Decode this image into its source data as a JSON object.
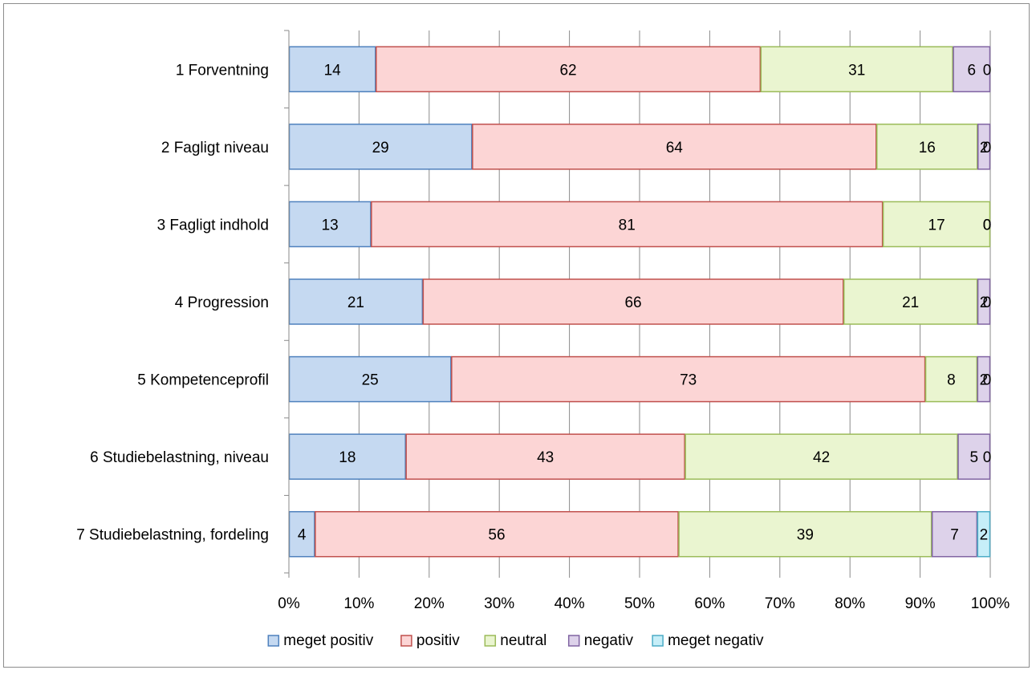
{
  "chart_data": {
    "type": "bar",
    "orientation": "horizontal",
    "stacked": "percent",
    "categories": [
      "1 Forventning",
      "2 Fagligt niveau",
      "3 Fagligt indhold",
      "4 Progression",
      "5 Kompetenceprofil",
      "6 Studiebelastning, niveau",
      "7 Studiebelastning, fordeling"
    ],
    "series": [
      {
        "name": "meget positiv",
        "values": [
          14,
          29,
          13,
          21,
          25,
          18,
          4
        ],
        "color": "#c5d9f1",
        "stroke": "#4f81bd"
      },
      {
        "name": "positiv",
        "values": [
          62,
          64,
          81,
          66,
          73,
          43,
          56
        ],
        "color": "#fcd5d5",
        "stroke": "#c0504d"
      },
      {
        "name": "neutral",
        "values": [
          31,
          16,
          17,
          21,
          8,
          42,
          39
        ],
        "color": "#eaf5d0",
        "stroke": "#9bbb59"
      },
      {
        "name": "negativ",
        "values": [
          6,
          2,
          0,
          2,
          2,
          5,
          7
        ],
        "color": "#ddd2ea",
        "stroke": "#8064a2"
      },
      {
        "name": "meget negativ",
        "values": [
          0,
          0,
          0,
          0,
          0,
          0,
          2
        ],
        "color": "#c6eef8",
        "stroke": "#4bacc6"
      }
    ],
    "xticks": [
      "0%",
      "10%",
      "20%",
      "30%",
      "40%",
      "50%",
      "60%",
      "70%",
      "80%",
      "90%",
      "100%"
    ],
    "xlim": [
      0,
      100
    ],
    "grid": true,
    "legend_position": "bottom",
    "title": "",
    "xlabel": "",
    "ylabel": ""
  }
}
